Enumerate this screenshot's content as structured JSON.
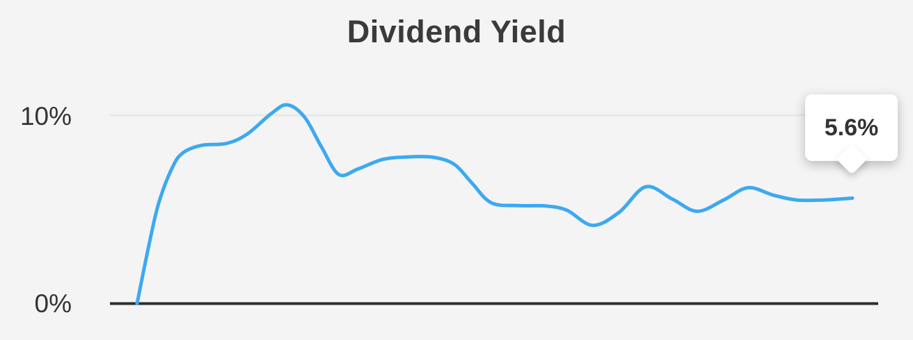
{
  "header": {
    "title": "Dividend Yield"
  },
  "y_axis": {
    "top_label": "10%",
    "bottom_label": "0%"
  },
  "tooltip": {
    "value": "5.6%"
  },
  "colors": {
    "background": "#f4f4f4",
    "line": "#3da9f0",
    "axis": "#2e2e2e",
    "gridline": "#e8e8e8",
    "title_text": "#3a3a3a",
    "label_text": "#333333",
    "tooltip_bg": "#ffffff",
    "tooltip_text": "#333333"
  },
  "chart_data": {
    "type": "line",
    "title": "Dividend Yield",
    "xlabel": "",
    "ylabel": "",
    "ylim": [
      0,
      11
    ],
    "yticks": [
      {
        "value": 0,
        "label": "0%"
      },
      {
        "value": 10,
        "label": "10%"
      }
    ],
    "gridline_values": [
      10
    ],
    "baseline_value": 0,
    "legend_position": "none",
    "grid": "single light horizontal gridline at 10%, dark baseline at 0%",
    "annotations": [
      {
        "type": "tooltip",
        "text": "5.6%",
        "attached_to": "last_point"
      }
    ],
    "series": [
      {
        "name": "Dividend Yield",
        "color": "#3da9f0",
        "points": [
          {
            "x": 0.0,
            "y": 0.0
          },
          {
            "x": 0.016,
            "y": 3.0
          },
          {
            "x": 0.03,
            "y": 5.3
          },
          {
            "x": 0.049,
            "y": 7.2
          },
          {
            "x": 0.064,
            "y": 8.0
          },
          {
            "x": 0.09,
            "y": 8.4
          },
          {
            "x": 0.125,
            "y": 8.5
          },
          {
            "x": 0.154,
            "y": 9.0
          },
          {
            "x": 0.188,
            "y": 10.1
          },
          {
            "x": 0.21,
            "y": 10.55
          },
          {
            "x": 0.234,
            "y": 9.9
          },
          {
            "x": 0.258,
            "y": 8.3
          },
          {
            "x": 0.282,
            "y": 6.85
          },
          {
            "x": 0.309,
            "y": 7.15
          },
          {
            "x": 0.343,
            "y": 7.65
          },
          {
            "x": 0.377,
            "y": 7.78
          },
          {
            "x": 0.413,
            "y": 7.77
          },
          {
            "x": 0.443,
            "y": 7.4
          },
          {
            "x": 0.468,
            "y": 6.4
          },
          {
            "x": 0.495,
            "y": 5.35
          },
          {
            "x": 0.533,
            "y": 5.2
          },
          {
            "x": 0.572,
            "y": 5.18
          },
          {
            "x": 0.601,
            "y": 4.95
          },
          {
            "x": 0.637,
            "y": 4.15
          },
          {
            "x": 0.674,
            "y": 4.85
          },
          {
            "x": 0.711,
            "y": 6.2
          },
          {
            "x": 0.748,
            "y": 5.55
          },
          {
            "x": 0.783,
            "y": 4.9
          },
          {
            "x": 0.82,
            "y": 5.5
          },
          {
            "x": 0.854,
            "y": 6.15
          },
          {
            "x": 0.89,
            "y": 5.75
          },
          {
            "x": 0.922,
            "y": 5.5
          },
          {
            "x": 0.961,
            "y": 5.5
          },
          {
            "x": 1.0,
            "y": 5.6
          }
        ]
      }
    ]
  }
}
